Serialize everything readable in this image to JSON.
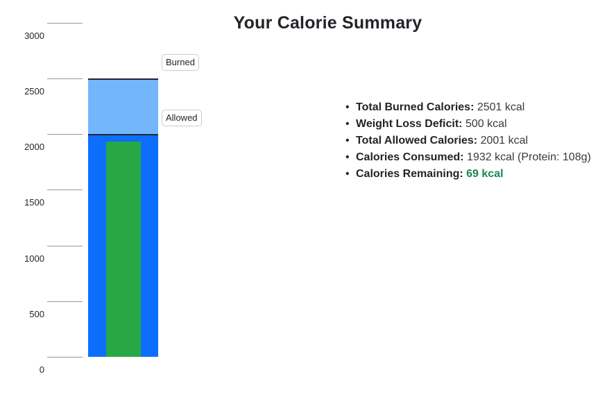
{
  "title": "Your Calorie Summary",
  "chart_data": {
    "type": "bar",
    "subtype": "overlay",
    "title": "Your Calorie Summary",
    "unit": "kcal",
    "ylim": [
      0,
      3000
    ],
    "yticks": [
      0,
      500,
      1000,
      1500,
      2000,
      2500,
      3000
    ],
    "grid": "left-tick-segments",
    "legend_position": "chip-right-of-bar",
    "series": [
      {
        "name": "burned",
        "label": "Burned",
        "value": 2501,
        "color": "#74b6fb"
      },
      {
        "name": "allowed",
        "label": "Allowed",
        "value": 2001,
        "color": "#0d6efd"
      },
      {
        "name": "consumed",
        "label": "",
        "value": 1932,
        "color": "#28a745"
      }
    ]
  },
  "summary": {
    "items": [
      {
        "label": "Total Burned Calories:",
        "value": "2501 kcal",
        "highlight": false
      },
      {
        "label": "Weight Loss Deficit:",
        "value": "500 kcal",
        "highlight": false
      },
      {
        "label": "Total Allowed Calories:",
        "value": "2001 kcal",
        "highlight": false
      },
      {
        "label": "Calories Consumed:",
        "value": "1932 kcal (Protein: 108g)",
        "highlight": false
      },
      {
        "label": "Calories Remaining:",
        "value": "69 kcal",
        "highlight": true
      }
    ]
  },
  "colors": {
    "burned_bar": "#74b6fb",
    "allowed_bar": "#0d6efd",
    "consumed_bar": "#28a745",
    "bar_top_border": "#222533",
    "highlight_text": "#198754",
    "tick_line": "#999999",
    "text_dark": "#212529"
  }
}
